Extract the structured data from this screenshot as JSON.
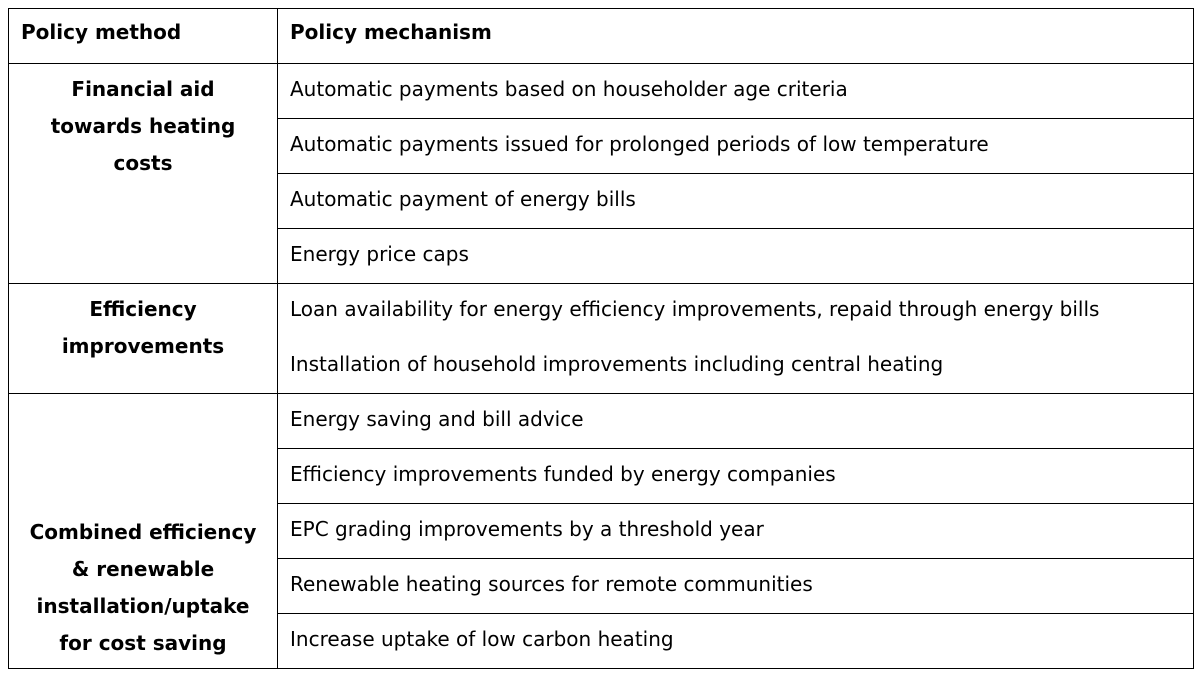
{
  "table": {
    "headers": {
      "method": "Policy method",
      "mechanism": "Policy mechanism"
    },
    "groups": [
      {
        "method_lines": [
          "Financial aid",
          "towards heating",
          "costs"
        ],
        "mechanisms": [
          "Automatic payments based on householder age criteria",
          "Automatic payments issued for prolonged periods of low temperature",
          "Automatic payment of energy bills",
          "Energy price caps"
        ]
      },
      {
        "method_lines": [
          "Efficiency",
          "improvements"
        ],
        "mechanisms": [
          "Loan availability for energy efficiency improvements, repaid through energy bills",
          "Installation of household improvements including central heating"
        ]
      },
      {
        "method_lines": [
          "Combined efficiency",
          "& renewable",
          "installation/uptake",
          "for cost saving"
        ],
        "mechanisms": [
          "Energy saving and bill advice",
          "Efficiency improvements funded by energy companies",
          "EPC grading improvements by a threshold year",
          "Renewable heating sources for remote communities",
          "Increase uptake of low carbon heating"
        ]
      }
    ]
  }
}
